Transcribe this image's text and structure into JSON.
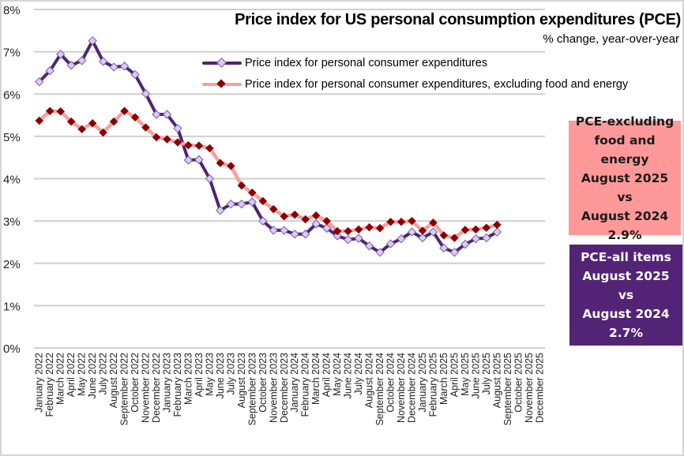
{
  "chart_data": {
    "type": "line",
    "title": "Price index for US personal consumption expenditures (PCE)",
    "subtitle": "% change, year-over-year",
    "xlabel": "",
    "ylabel": "",
    "ylim": [
      0,
      8
    ],
    "y_ticks": [
      "0%",
      "1%",
      "2%",
      "3%",
      "4%",
      "5%",
      "6%",
      "7%",
      "8%"
    ],
    "y_tick_values": [
      0,
      1,
      2,
      3,
      4,
      5,
      6,
      7,
      8
    ],
    "grid": true,
    "legend_position": "top-center",
    "categories": [
      "January 2022",
      "February 2022",
      "March 2022",
      "April 2022",
      "May 2022",
      "June 2022",
      "July 2022",
      "August 2022",
      "September 2022",
      "October 2022",
      "November 2022",
      "December 2022",
      "January 2023",
      "February 2023",
      "March 2023",
      "April 2023",
      "May 2023",
      "June 2023",
      "July 2023",
      "August 2023",
      "September 2023",
      "October 2023",
      "November 2023",
      "December 2023",
      "January 2024",
      "February 2024",
      "March 2024",
      "April 2024",
      "May 2024",
      "June 2024",
      "July 2024",
      "August 2024",
      "September 2024",
      "October 2024",
      "November 2024",
      "December 2024",
      "January 2025",
      "February 2025",
      "March 2025",
      "April 2025",
      "May 2025",
      "June 2025",
      "July 2025",
      "August 2025",
      "September 2025",
      "October 2025",
      "November 2025",
      "December 2025"
    ],
    "series": [
      {
        "name": "Price index for personal consumer expenditures",
        "color": "#4b2673",
        "marker_fill": "#d9ccf2",
        "marker": "diamond-open",
        "values": [
          6.29,
          6.55,
          6.94,
          6.68,
          6.79,
          7.26,
          6.77,
          6.64,
          6.66,
          6.46,
          6.01,
          5.52,
          5.52,
          5.19,
          4.44,
          4.45,
          4.0,
          3.25,
          3.4,
          3.4,
          3.45,
          3.0,
          2.78,
          2.78,
          2.69,
          2.69,
          2.93,
          2.83,
          2.65,
          2.56,
          2.59,
          2.41,
          2.26,
          2.46,
          2.58,
          2.74,
          2.6,
          2.74,
          2.36,
          2.26,
          2.45,
          2.58,
          2.6,
          2.74,
          null,
          null,
          null,
          null
        ]
      },
      {
        "name": "Price index for personal consumer expenditures, excluding food and energy",
        "color": "#f4a0a0",
        "marker_fill": "#8b0000",
        "marker": "diamond-filled",
        "values": [
          5.37,
          5.6,
          5.59,
          5.35,
          5.17,
          5.31,
          5.09,
          5.35,
          5.6,
          5.45,
          5.21,
          4.98,
          4.93,
          4.86,
          4.79,
          4.78,
          4.72,
          4.37,
          4.3,
          3.84,
          3.67,
          3.47,
          3.28,
          3.11,
          3.15,
          3.04,
          3.13,
          3.0,
          2.76,
          2.76,
          2.8,
          2.85,
          2.83,
          2.98,
          2.98,
          3.0,
          2.77,
          2.96,
          2.66,
          2.6,
          2.79,
          2.8,
          2.84,
          2.91,
          null,
          null,
          null,
          null
        ]
      }
    ],
    "annotations": [
      {
        "id": "core",
        "lines": [
          "PCE-excluding",
          "food and energy",
          "August 2025",
          "vs",
          "August 2024",
          "2.9%"
        ],
        "background": "#ff9999"
      },
      {
        "id": "all",
        "lines": [
          "PCE-all items",
          "August 2025",
          "vs",
          "August 2024",
          "2.7%"
        ],
        "background": "#532476"
      }
    ]
  }
}
